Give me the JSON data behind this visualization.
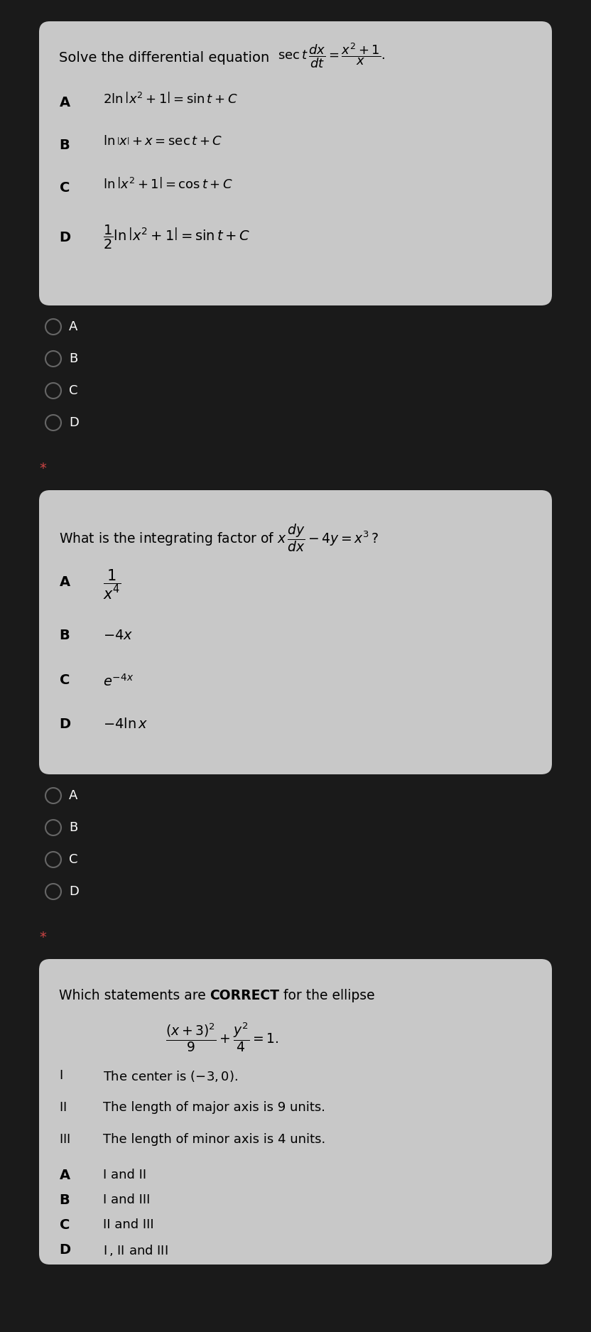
{
  "bg_dark": "#1a1a1a",
  "bg_card": "#c8c8c8",
  "bg_answer": "#1a1a1a",
  "text_color": "#000000",
  "text_light": "#ffffff",
  "text_gray": "#aaaaaa",
  "q1": {
    "question": "Solve the differential equation",
    "question_formula": "\\mathrm{sec}\\,t\\,\\dfrac{dx}{dt} = \\dfrac{x^2+1}{x}.",
    "options": [
      [
        "A",
        "2\\ln\\left|x^2+1\\right| = \\sin t + C"
      ],
      [
        "B",
        "\\ln\\left|x\\right| + x = \\sec t + C"
      ],
      [
        "C",
        "\\ln\\left|x^2+1\\right| = \\cos t + C"
      ],
      [
        "D",
        "\\dfrac{1}{2}\\ln\\left|x^2+1\\right| = \\sin t + C"
      ]
    ]
  },
  "q2": {
    "question": "What is the integrating factor of",
    "question_formula": "x\\,\\dfrac{dy}{dx} - 4y = x^3\\,?",
    "options": [
      [
        "A",
        "\\dfrac{1}{x^4}"
      ],
      [
        "B",
        "-4x"
      ],
      [
        "C",
        "e^{-4x}"
      ],
      [
        "D",
        "-4\\ln x"
      ]
    ]
  },
  "q3": {
    "question_text": "Which statements are ",
    "question_bold": "CORRECT",
    "question_rest": " for the ellipse",
    "question_formula": "\\dfrac{(x+3)^2}{9} + \\dfrac{y^2}{4} = 1.",
    "statements": [
      [
        "I",
        "The center is $(-3,0)$."
      ],
      [
        "II",
        "The length of major axis is 9 units."
      ],
      [
        "III",
        "The length of minor axis is 4 units."
      ]
    ],
    "options": [
      [
        "A",
        "I and II"
      ],
      [
        "B",
        "I and III"
      ],
      [
        "C",
        "II and III"
      ],
      [
        "D",
        "I\\,,\\, II and III"
      ]
    ]
  }
}
